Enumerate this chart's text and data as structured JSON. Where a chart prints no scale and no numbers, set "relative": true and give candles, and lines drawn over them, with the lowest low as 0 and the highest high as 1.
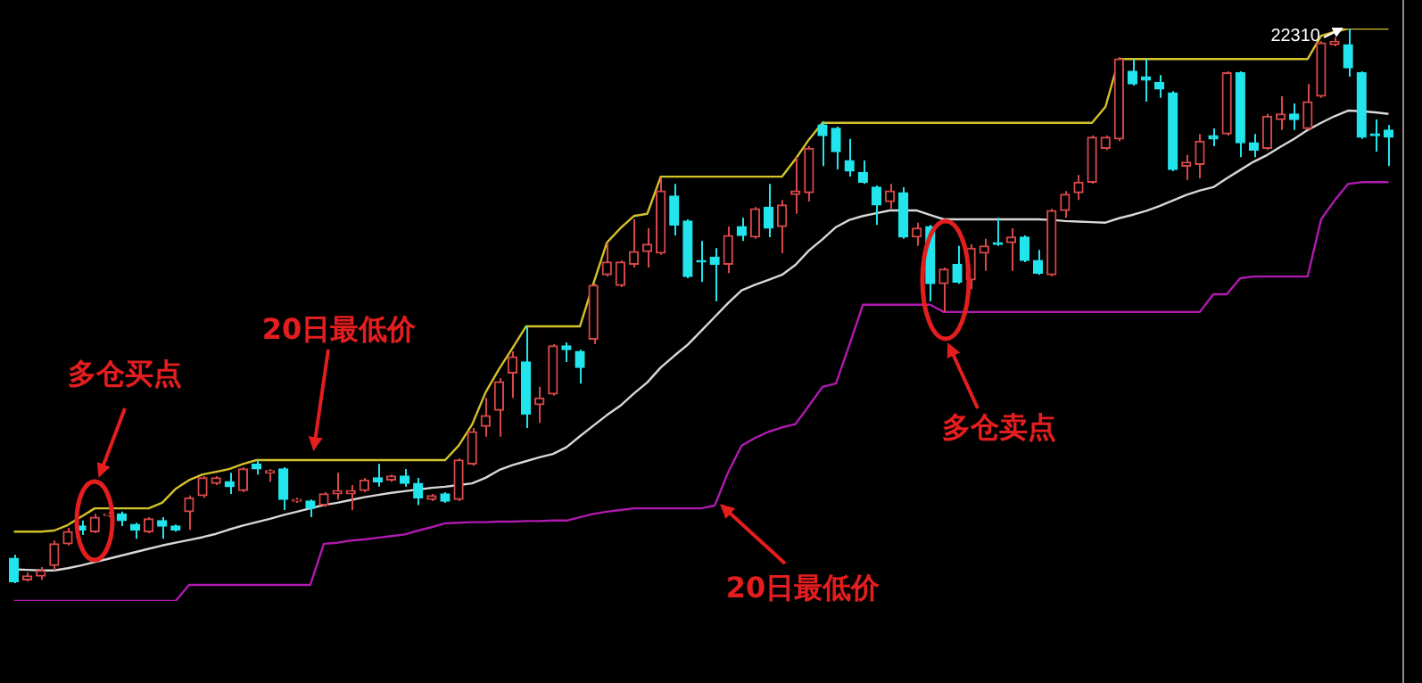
{
  "chart_data": {
    "type": "candlestick",
    "relative": true,
    "tick_labels": false,
    "categories": [
      null,
      null,
      null,
      null,
      null,
      null,
      null,
      null,
      null,
      null,
      null,
      null,
      null,
      null,
      null,
      null,
      null,
      null,
      null,
      null,
      null,
      null,
      null,
      null,
      null,
      null,
      null,
      null,
      null,
      null,
      null,
      null,
      null,
      null,
      null,
      null,
      null,
      null,
      null,
      null,
      null,
      null,
      null,
      null,
      null,
      null,
      null,
      null,
      null,
      null,
      null,
      null,
      null,
      null,
      null,
      null,
      null,
      null,
      null,
      null,
      null,
      null,
      null,
      null,
      null,
      null,
      null,
      null,
      null,
      null,
      null,
      null,
      null,
      null,
      null,
      null,
      null,
      null,
      null,
      null,
      null,
      null,
      null,
      null,
      null,
      null,
      null,
      null,
      null,
      null,
      null,
      null,
      null,
      null,
      null,
      null,
      null,
      null,
      null,
      null,
      null,
      null,
      null
    ],
    "ohlc": [
      [
        0.045,
        0.051,
        0,
        0.003
      ],
      [
        0.006,
        0.019,
        0.003,
        0.013
      ],
      [
        0.013,
        0.029,
        0.006,
        0.023
      ],
      [
        0.032,
        0.077,
        0.023,
        0.071
      ],
      [
        0.071,
        0.1,
        0.068,
        0.093
      ],
      [
        0.103,
        0.113,
        0.087,
        0.096
      ],
      [
        0.093,
        0.125,
        0.09,
        0.119
      ],
      [
        0.122,
        0.129,
        0.119,
        0.125
      ],
      [
        0.125,
        0.129,
        0.103,
        0.113
      ],
      [
        0.106,
        0.109,
        0.08,
        0.096
      ],
      [
        0.093,
        0.119,
        0.09,
        0.116
      ],
      [
        0.113,
        0.119,
        0.08,
        0.103
      ],
      [
        0.103,
        0.106,
        0.093,
        0.096
      ],
      [
        0.129,
        0.158,
        0.096,
        0.154
      ],
      [
        0.158,
        0.193,
        0.154,
        0.19
      ],
      [
        0.18,
        0.193,
        0.177,
        0.19
      ],
      [
        0.183,
        0.199,
        0.161,
        0.174
      ],
      [
        0.167,
        0.209,
        0.164,
        0.206
      ],
      [
        0.215,
        0.222,
        0.196,
        0.206
      ],
      [
        0.199,
        0.206,
        0.183,
        0.203
      ],
      [
        0.206,
        0.209,
        0.132,
        0.151
      ],
      [
        0.148,
        0.154,
        0.145,
        0.151
      ],
      [
        0.148,
        0.151,
        0.119,
        0.135
      ],
      [
        0.141,
        0.164,
        0.138,
        0.161
      ],
      [
        0.161,
        0.199,
        0.151,
        0.167
      ],
      [
        0.161,
        0.177,
        0.132,
        0.167
      ],
      [
        0.167,
        0.19,
        0.164,
        0.186
      ],
      [
        0.19,
        0.215,
        0.174,
        0.183
      ],
      [
        0.186,
        0.196,
        0.183,
        0.193
      ],
      [
        0.193,
        0.206,
        0.174,
        0.18
      ],
      [
        0.18,
        0.19,
        0.141,
        0.154
      ],
      [
        0.151,
        0.161,
        0.148,
        0.158
      ],
      [
        0.161,
        0.164,
        0.145,
        0.148
      ],
      [
        0.151,
        0.225,
        0.148,
        0.222
      ],
      [
        0.215,
        0.28,
        0.212,
        0.273
      ],
      [
        0.283,
        0.334,
        0.264,
        0.302
      ],
      [
        0.312,
        0.37,
        0.264,
        0.363
      ],
      [
        0.379,
        0.418,
        0.334,
        0.408
      ],
      [
        0.399,
        0.463,
        0.28,
        0.305
      ],
      [
        0.322,
        0.354,
        0.289,
        0.334
      ],
      [
        0.341,
        0.431,
        0.338,
        0.428
      ],
      [
        0.428,
        0.434,
        0.399,
        0.421
      ],
      [
        0.418,
        0.421,
        0.36,
        0.389
      ],
      [
        0.44,
        0.54,
        0.431,
        0.537
      ],
      [
        0.556,
        0.614,
        0.553,
        0.579
      ],
      [
        0.537,
        0.582,
        0.534,
        0.579
      ],
      [
        0.575,
        0.656,
        0.569,
        0.598
      ],
      [
        0.598,
        0.64,
        0.569,
        0.611
      ],
      [
        0.595,
        0.73,
        0.592,
        0.707
      ],
      [
        0.698,
        0.72,
        0.627,
        0.646
      ],
      [
        0.653,
        0.656,
        0.55,
        0.553
      ],
      [
        0.582,
        0.617,
        0.543,
        0.579
      ],
      [
        0.588,
        0.604,
        0.508,
        0.575
      ],
      [
        0.575,
        0.643,
        0.559,
        0.627
      ],
      [
        0.643,
        0.659,
        0.617,
        0.627
      ],
      [
        0.624,
        0.678,
        0.621,
        0.675
      ],
      [
        0.678,
        0.72,
        0.624,
        0.64
      ],
      [
        0.643,
        0.691,
        0.595,
        0.682
      ],
      [
        0.701,
        0.768,
        0.666,
        0.707
      ],
      [
        0.704,
        0.788,
        0.688,
        0.784
      ],
      [
        0.826,
        0.833,
        0.752,
        0.807
      ],
      [
        0.82,
        0.823,
        0.746,
        0.778
      ],
      [
        0.762,
        0.801,
        0.733,
        0.743
      ],
      [
        0.74,
        0.762,
        0.72,
        0.723
      ],
      [
        0.714,
        0.717,
        0.646,
        0.682
      ],
      [
        0.688,
        0.72,
        0.675,
        0.707
      ],
      [
        0.704,
        0.714,
        0.621,
        0.624
      ],
      [
        0.624,
        0.65,
        0.608,
        0.64
      ],
      [
        0.643,
        0.646,
        0.508,
        0.54
      ],
      [
        0.54,
        0.569,
        0.489,
        0.566
      ],
      [
        0.575,
        0.608,
        0.54,
        0.543
      ],
      [
        0.547,
        0.611,
        0.53,
        0.604
      ],
      [
        0.595,
        0.621,
        0.563,
        0.608
      ],
      [
        0.614,
        0.659,
        0.608,
        0.611
      ],
      [
        0.614,
        0.64,
        0.563,
        0.624
      ],
      [
        0.624,
        0.627,
        0.579,
        0.582
      ],
      [
        0.582,
        0.601,
        0.556,
        0.559
      ],
      [
        0.556,
        0.675,
        0.553,
        0.672
      ],
      [
        0.672,
        0.707,
        0.659,
        0.701
      ],
      [
        0.704,
        0.736,
        0.691,
        0.723
      ],
      [
        0.723,
        0.807,
        0.72,
        0.804
      ],
      [
        0.784,
        0.807,
        0.781,
        0.804
      ],
      [
        0.801,
        0.948,
        0.797,
        0.945
      ],
      [
        0.923,
        0.945,
        0.897,
        0.9
      ],
      [
        0.913,
        0.945,
        0.868,
        0.907
      ],
      [
        0.903,
        0.916,
        0.875,
        0.891
      ],
      [
        0.884,
        0.887,
        0.743,
        0.746
      ],
      [
        0.752,
        0.772,
        0.727,
        0.759
      ],
      [
        0.755,
        0.81,
        0.73,
        0.797
      ],
      [
        0.807,
        0.82,
        0.788,
        0.801
      ],
      [
        0.81,
        0.923,
        0.807,
        0.92
      ],
      [
        0.92,
        0.923,
        0.768,
        0.794
      ],
      [
        0.794,
        0.81,
        0.768,
        0.781
      ],
      [
        0.784,
        0.846,
        0.781,
        0.842
      ],
      [
        0.836,
        0.878,
        0.817,
        0.846
      ],
      [
        0.846,
        0.865,
        0.817,
        0.836
      ],
      [
        0.82,
        0.9,
        0.817,
        0.868
      ],
      [
        0.878,
        0.977,
        0.875,
        0.974
      ],
      [
        0.971,
        0.984,
        0.968,
        0.977
      ],
      [
        0.971,
        1,
        0.913,
        0.929
      ],
      [
        0.92,
        0.923,
        0.801,
        0.804
      ],
      [
        0.81,
        0.836,
        0.778,
        0.807
      ],
      [
        0.817,
        0.826,
        0.752,
        0.804
      ]
    ],
    "colors": [
      "#22e4ec",
      "#d84848",
      "#d84848",
      "#d84848",
      "#d84848",
      "#22e4ec",
      "#d84848",
      "#d84848",
      "#22e4ec",
      "#22e4ec",
      "#d84848",
      "#22e4ec",
      "#22e4ec",
      "#d84848",
      "#d84848",
      "#d84848",
      "#22e4ec",
      "#d84848",
      "#22e4ec",
      "#d84848",
      "#22e4ec",
      "#d84848",
      "#22e4ec",
      "#d84848",
      "#d84848",
      "#d84848",
      "#d84848",
      "#22e4ec",
      "#d84848",
      "#22e4ec",
      "#22e4ec",
      "#d84848",
      "#22e4ec",
      "#d84848",
      "#d84848",
      "#d84848",
      "#d84848",
      "#d84848",
      "#22e4ec",
      "#d84848",
      "#d84848",
      "#22e4ec",
      "#22e4ec",
      "#d84848",
      "#d84848",
      "#d84848",
      "#d84848",
      "#d84848",
      "#d84848",
      "#22e4ec",
      "#22e4ec",
      "#22e4ec",
      "#22e4ec",
      "#d84848",
      "#22e4ec",
      "#d84848",
      "#22e4ec",
      "#d84848",
      "#d84848",
      "#d84848",
      "#22e4ec",
      "#22e4ec",
      "#22e4ec",
      "#22e4ec",
      "#22e4ec",
      "#d84848",
      "#22e4ec",
      "#d84848",
      "#22e4ec",
      "#d84848",
      "#22e4ec",
      "#d84848",
      "#d84848",
      "#22e4ec",
      "#d84848",
      "#22e4ec",
      "#22e4ec",
      "#d84848",
      "#d84848",
      "#d84848",
      "#d84848",
      "#d84848",
      "#d84848",
      "#22e4ec",
      "#22e4ec",
      "#22e4ec",
      "#22e4ec",
      "#d84848",
      "#d84848",
      "#22e4ec",
      "#d84848",
      "#22e4ec",
      "#22e4ec",
      "#d84848",
      "#d84848",
      "#22e4ec",
      "#d84848",
      "#d84848",
      "#d84848",
      "#22e4ec",
      "#22e4ec",
      "#22e4ec",
      "#22e4ec"
    ],
    "series": [
      {
        "type": "line",
        "color": "#d4c22a",
        "values": [
          0.093,
          0.093,
          0.093,
          0.095,
          0.105,
          0.12,
          0.135,
          0.135,
          0.135,
          0.135,
          0.135,
          0.145,
          0.17,
          0.186,
          0.196,
          0.201,
          0.206,
          0.215,
          0.222,
          0.222,
          0.222,
          0.222,
          0.222,
          0.222,
          0.222,
          0.222,
          0.222,
          0.222,
          0.222,
          0.222,
          0.222,
          0.222,
          0.222,
          0.248,
          0.286,
          0.344,
          0.386,
          0.424,
          0.463,
          0.463,
          0.463,
          0.463,
          0.463,
          0.54,
          0.614,
          0.64,
          0.662,
          0.666,
          0.733,
          0.733,
          0.733,
          0.733,
          0.733,
          0.733,
          0.733,
          0.733,
          0.733,
          0.733,
          0.765,
          0.8,
          0.83,
          0.83,
          0.83,
          0.83,
          0.83,
          0.83,
          0.83,
          0.83,
          0.83,
          0.83,
          0.83,
          0.83,
          0.83,
          0.83,
          0.83,
          0.83,
          0.83,
          0.83,
          0.83,
          0.83,
          0.83,
          0.859,
          0.945,
          0.945,
          0.945,
          0.945,
          0.945,
          0.945,
          0.945,
          0.945,
          0.945,
          0.945,
          0.945,
          0.945,
          0.945,
          0.945,
          0.945,
          0.987,
          0.994,
          1,
          1,
          1,
          1
        ]
      },
      {
        "type": "line",
        "color": "#d8d8d8",
        "values": [
          0.025,
          0.024,
          0.023,
          0.023,
          0.027,
          0.032,
          0.038,
          0.044,
          0.05,
          0.056,
          0.062,
          0.068,
          0.073,
          0.078,
          0.083,
          0.089,
          0.097,
          0.104,
          0.11,
          0.116,
          0.123,
          0.129,
          0.135,
          0.141,
          0.145,
          0.15,
          0.155,
          0.159,
          0.163,
          0.166,
          0.169,
          0.172,
          0.174,
          0.177,
          0.18,
          0.19,
          0.204,
          0.213,
          0.22,
          0.227,
          0.233,
          0.245,
          0.265,
          0.284,
          0.303,
          0.32,
          0.342,
          0.362,
          0.389,
          0.41,
          0.43,
          0.455,
          0.48,
          0.505,
          0.528,
          0.538,
          0.547,
          0.556,
          0.574,
          0.6,
          0.62,
          0.642,
          0.655,
          0.662,
          0.667,
          0.672,
          0.672,
          0.672,
          0.664,
          0.656,
          0.656,
          0.656,
          0.656,
          0.656,
          0.656,
          0.656,
          0.656,
          0.655,
          0.653,
          0.652,
          0.651,
          0.65,
          0.658,
          0.664,
          0.671,
          0.68,
          0.69,
          0.7,
          0.708,
          0.714,
          0.73,
          0.745,
          0.76,
          0.772,
          0.787,
          0.801,
          0.817,
          0.83,
          0.842,
          0.852,
          0.851,
          0.849,
          0.846
        ]
      },
      {
        "type": "line",
        "color": "#b01ab0",
        "values": [
          -0.032,
          -0.032,
          -0.032,
          -0.032,
          -0.032,
          -0.032,
          -0.032,
          -0.032,
          -0.032,
          -0.032,
          -0.032,
          -0.032,
          -0.032,
          -0.003,
          -0.003,
          -0.003,
          -0.003,
          -0.003,
          -0.003,
          -0.003,
          -0.003,
          -0.003,
          -0.003,
          0.071,
          0.073,
          0.077,
          0.079,
          0.082,
          0.085,
          0.088,
          0.095,
          0.101,
          0.108,
          0.109,
          0.11,
          0.11,
          0.111,
          0.111,
          0.112,
          0.112,
          0.113,
          0.113,
          0.119,
          0.125,
          0.129,
          0.132,
          0.135,
          0.135,
          0.135,
          0.135,
          0.135,
          0.135,
          0.14,
          0.2,
          0.248,
          0.262,
          0.273,
          0.281,
          0.287,
          0.32,
          0.354,
          0.36,
          0.43,
          0.502,
          0.502,
          0.502,
          0.502,
          0.502,
          0.502,
          0.489,
          0.489,
          0.489,
          0.489,
          0.489,
          0.489,
          0.489,
          0.489,
          0.489,
          0.489,
          0.489,
          0.489,
          0.489,
          0.489,
          0.489,
          0.489,
          0.489,
          0.489,
          0.489,
          0.489,
          0.521,
          0.521,
          0.55,
          0.553,
          0.553,
          0.553,
          0.553,
          0.553,
          0.656,
          0.69,
          0.72,
          0.723,
          0.723,
          0.723
        ]
      }
    ],
    "annotations": [
      "多仓买点",
      "20日最低价",
      "多仓卖点",
      "20日最低价",
      "22310"
    ]
  }
}
